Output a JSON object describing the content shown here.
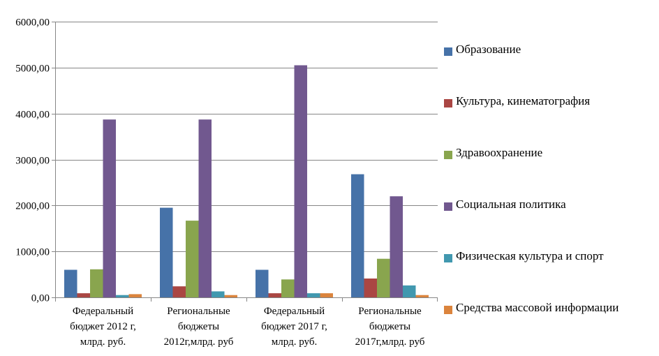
{
  "chart_data": {
    "type": "bar",
    "title": "",
    "xlabel": "",
    "ylabel": "",
    "ylim": [
      0,
      6000
    ],
    "ytick_values": [
      0,
      1000,
      2000,
      3000,
      4000,
      5000,
      6000
    ],
    "ytick_labels": [
      "0,00",
      "1000,00",
      "2000,00",
      "3000,00",
      "4000,00",
      "5000,00",
      "6000,00"
    ],
    "grid": true,
    "legend_position": "right",
    "categories": [
      [
        "Федеральный",
        "бюджет 2012 г,",
        "млрд. руб."
      ],
      [
        "Региональные",
        "бюджеты",
        "2012г,млрд. руб"
      ],
      [
        "Федеральный",
        "бюджет 2017 г,",
        "млрд. руб."
      ],
      [
        "Региональные",
        "бюджеты",
        "2017г,млрд. руб"
      ]
    ],
    "series": [
      {
        "name": "Образование",
        "color": "#4672A8",
        "values": [
          600,
          1950,
          600,
          2680
        ]
      },
      {
        "name": "Культура, кинематография",
        "color": "#AA4643",
        "values": [
          90,
          240,
          90,
          410
        ]
      },
      {
        "name": "Здравоохранение",
        "color": "#89A54E",
        "values": [
          610,
          1670,
          390,
          840
        ]
      },
      {
        "name": "Социальная политика",
        "color": "#71588F",
        "values": [
          3870,
          3870,
          5050,
          2200
        ]
      },
      {
        "name": "Физическая культура и спорт",
        "color": "#4198AF",
        "values": [
          50,
          130,
          90,
          260
        ]
      },
      {
        "name": "Средства массовой информации",
        "color": "#DB843D",
        "values": [
          70,
          50,
          90,
          50
        ]
      }
    ]
  }
}
